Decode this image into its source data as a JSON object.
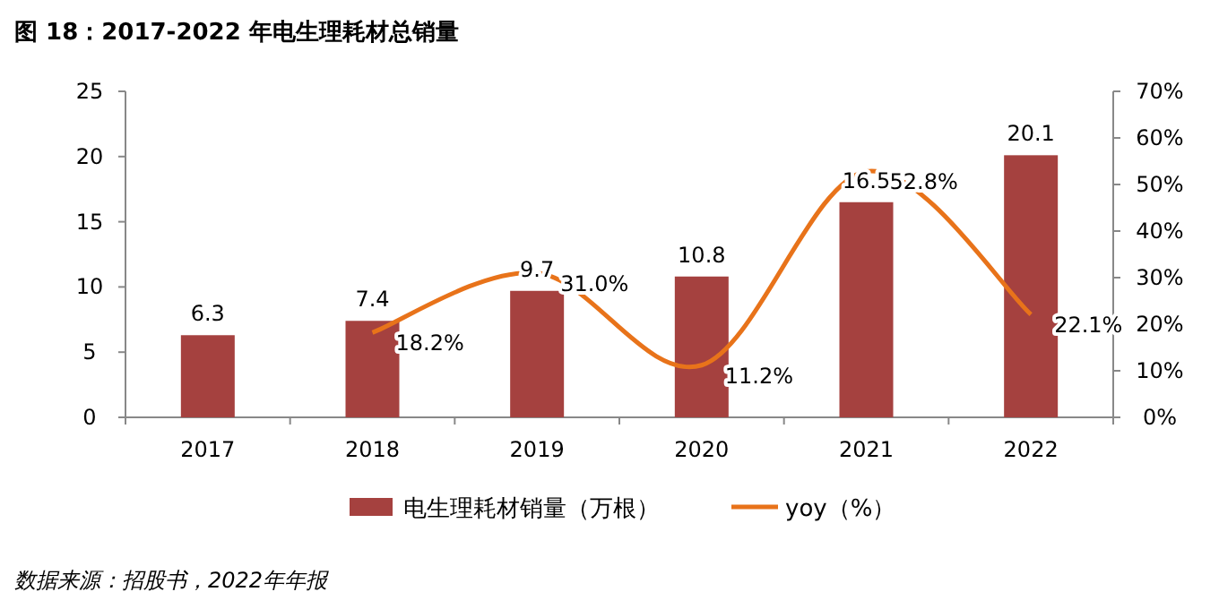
{
  "chart_data": {
    "type": "bar",
    "title": "图 18：2017-2022 年电生理耗材总销量",
    "categories": [
      "2017",
      "2018",
      "2019",
      "2020",
      "2021",
      "2022"
    ],
    "series": [
      {
        "name": "电生理耗材销量（万根）",
        "color": "#a5413f",
        "values": [
          6.3,
          7.4,
          9.7,
          10.8,
          16.5,
          20.1
        ],
        "value_labels": [
          "6.3",
          "7.4",
          "9.7",
          "10.8",
          "16.5",
          "20.1"
        ]
      },
      {
        "name": "yoy（%）",
        "type": "line",
        "axis": "y2",
        "color": "#e8731a",
        "values": [
          null,
          18.2,
          31.0,
          11.2,
          52.8,
          22.1
        ],
        "value_labels": [
          null,
          "18.2%",
          "31.0%",
          "11.2%",
          "52.8%",
          "22.1%"
        ]
      }
    ],
    "ylim": [
      0,
      25
    ],
    "yticks": [
      0,
      5,
      10,
      15,
      20,
      25
    ],
    "y2lim": [
      0,
      70
    ],
    "y2ticks": [
      {
        "value": 0,
        "label": "0%"
      },
      {
        "value": 10,
        "label": "10%"
      },
      {
        "value": 20,
        "label": "20%"
      },
      {
        "value": 30,
        "label": "30%"
      },
      {
        "value": 40,
        "label": "40%"
      },
      {
        "value": 50,
        "label": "50%"
      },
      {
        "value": 60,
        "label": "60%"
      },
      {
        "value": 70,
        "label": "70%"
      }
    ],
    "legend": "bottom",
    "annotations": [
      "数据来源：招股书，2022年年报"
    ]
  }
}
